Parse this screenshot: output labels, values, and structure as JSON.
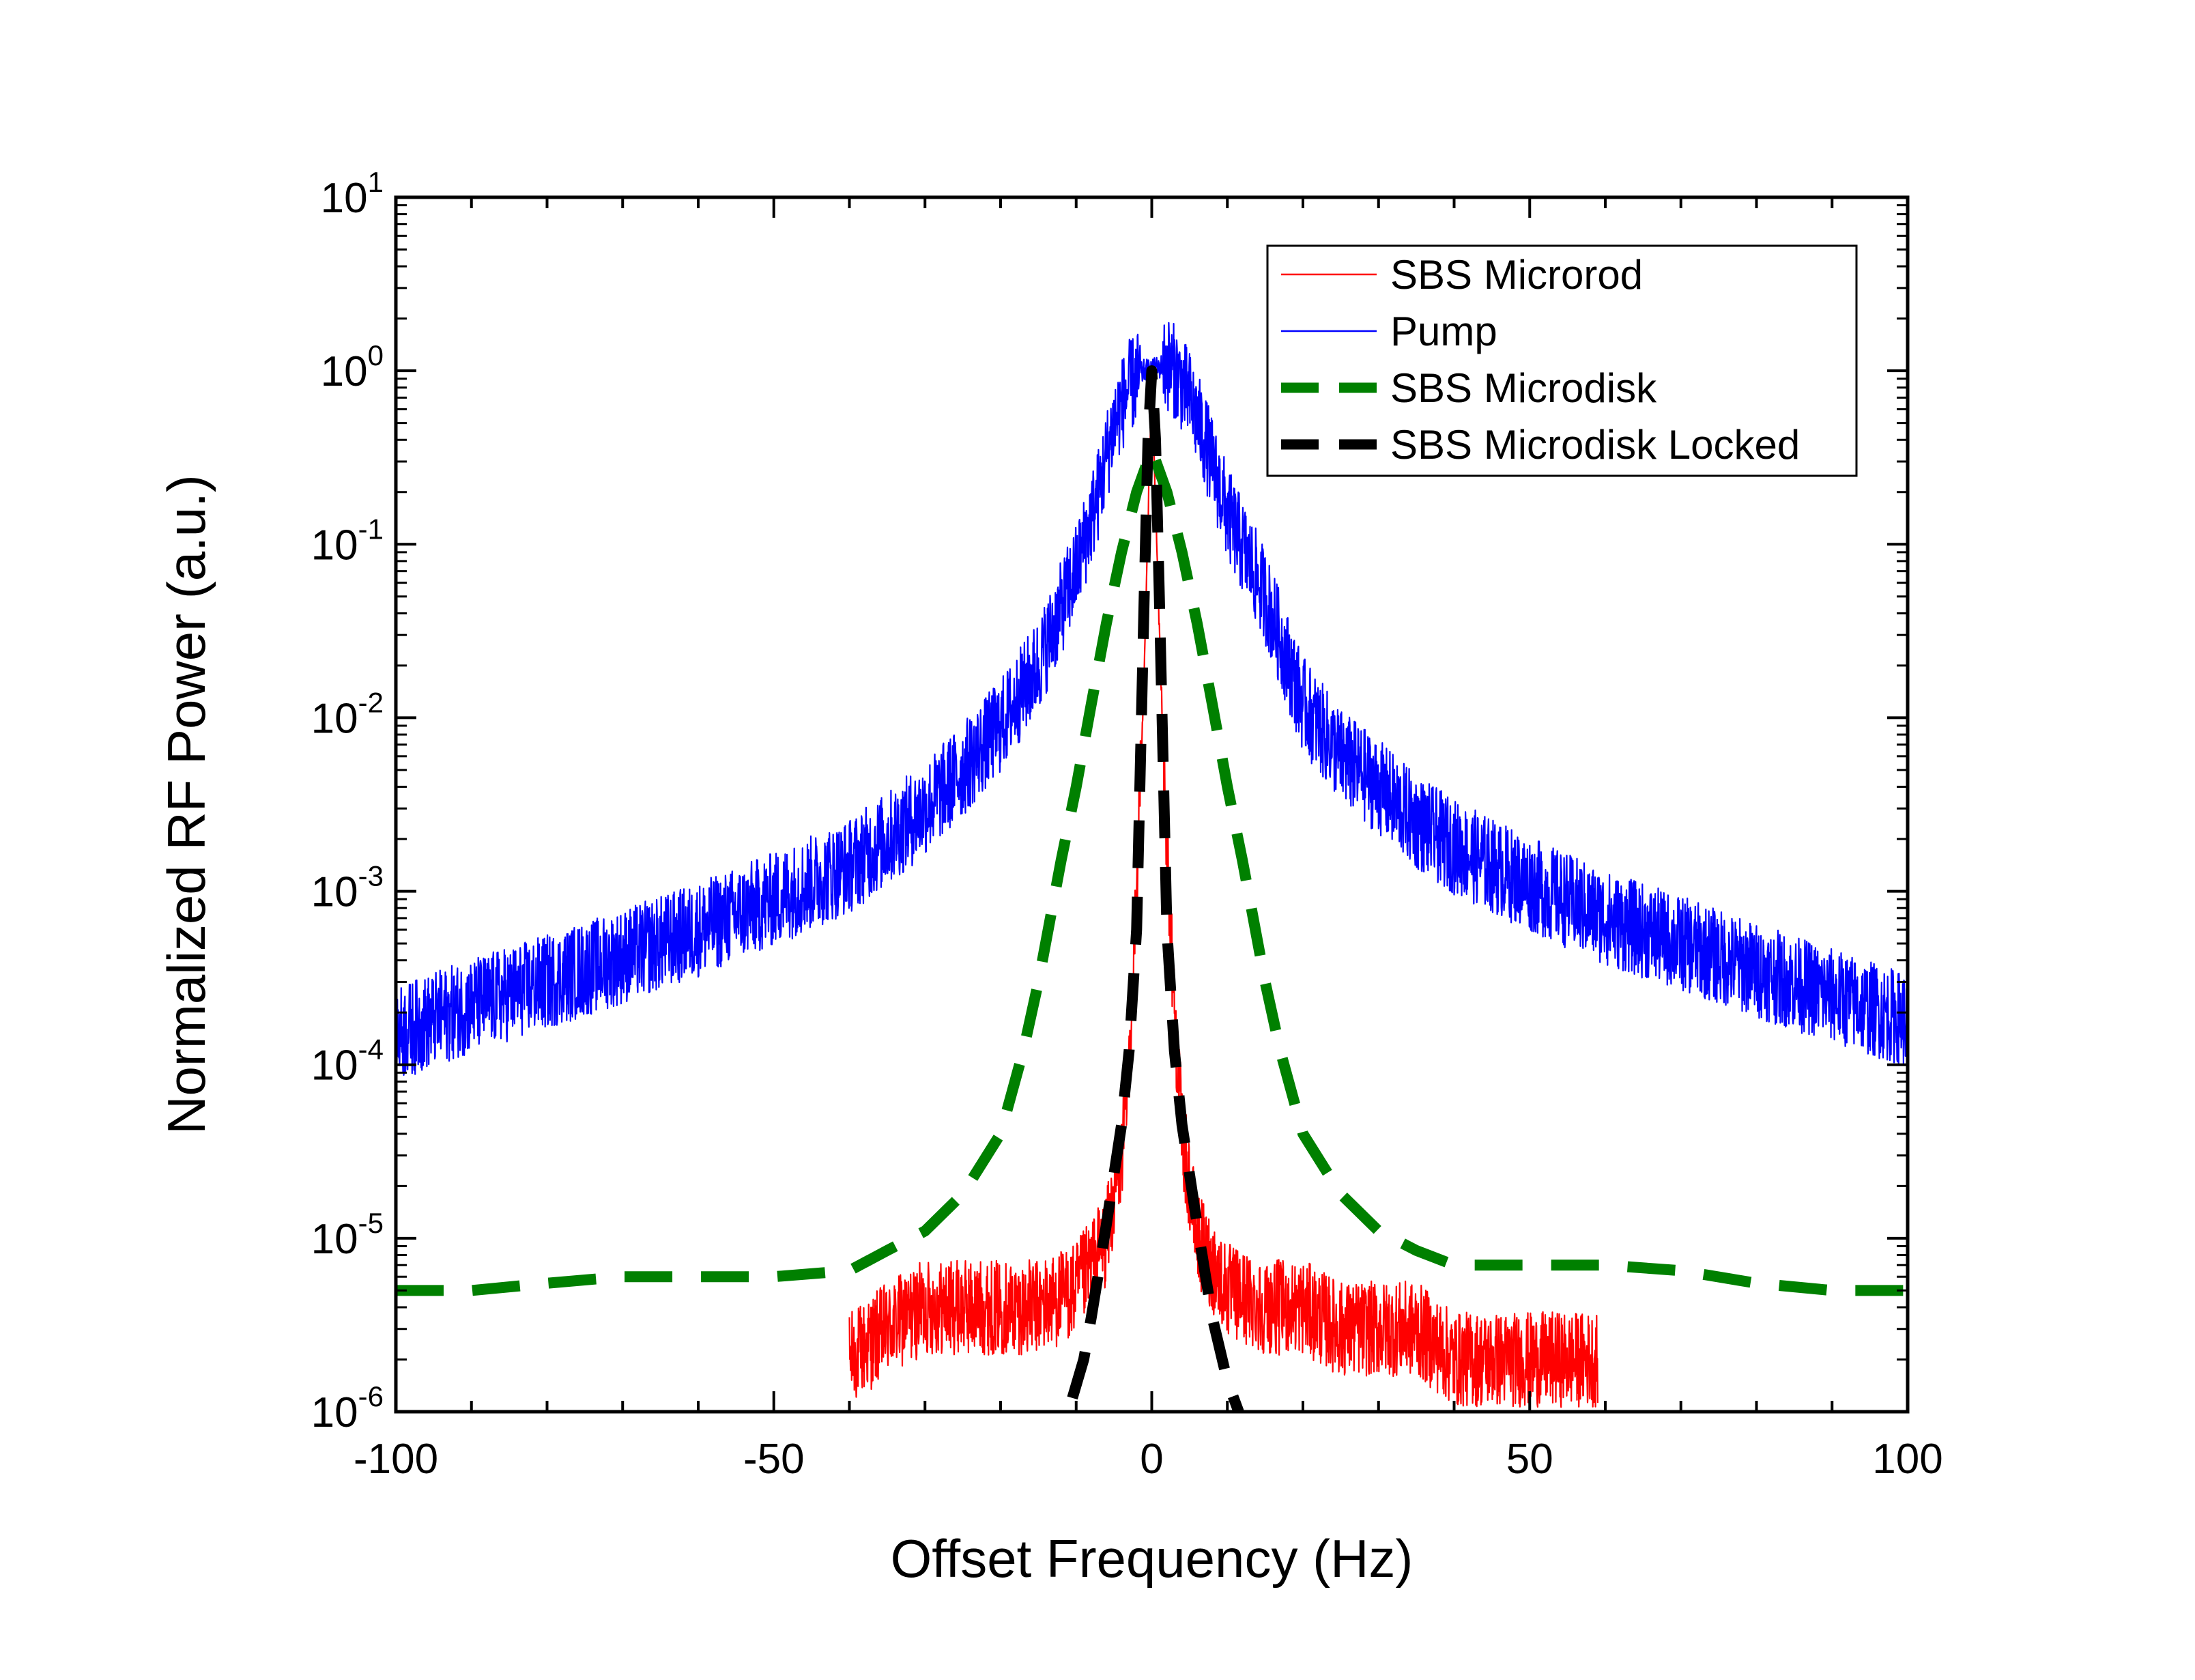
{
  "chart_data": {
    "type": "line",
    "title": "",
    "xlabel": "Offset Frequency (Hz)",
    "ylabel": "Normalized RF Power (a.u.)",
    "xlim": [
      -100,
      100
    ],
    "ylim": [
      1e-06,
      10
    ],
    "yscale": "log",
    "legend_position": "top-right",
    "x_ticks": [
      {
        "value": -100,
        "label": "-100"
      },
      {
        "value": -50,
        "label": "-50"
      },
      {
        "value": 0,
        "label": "0"
      },
      {
        "value": 50,
        "label": "50"
      },
      {
        "value": 100,
        "label": "100"
      }
    ],
    "y_ticks": [
      {
        "value": 1e-06,
        "base": "10",
        "exp": "-6"
      },
      {
        "value": 1e-05,
        "base": "10",
        "exp": "-5"
      },
      {
        "value": 0.0001,
        "base": "10",
        "exp": "-4"
      },
      {
        "value": 0.001,
        "base": "10",
        "exp": "-3"
      },
      {
        "value": 0.01,
        "base": "10",
        "exp": "-2"
      },
      {
        "value": 0.1,
        "base": "10",
        "exp": "-1"
      },
      {
        "value": 1,
        "base": "10",
        "exp": "0"
      },
      {
        "value": 10,
        "base": "10",
        "exp": "1"
      }
    ],
    "series": [
      {
        "name": "SBS Microrod",
        "color": "#ff0000",
        "style": "solid-noisy",
        "x": [
          -40,
          -35,
          -30,
          -25,
          -20,
          -15,
          -10,
          -8,
          -6,
          -4,
          -3,
          -2,
          -1,
          0,
          1,
          2,
          3,
          4,
          6,
          8,
          10,
          15,
          20,
          25,
          30,
          35,
          40,
          45,
          50,
          55,
          59
        ],
        "y": [
          2e-06,
          3e-06,
          4e-06,
          4e-06,
          4e-06,
          4e-06,
          5e-06,
          7e-06,
          1e-05,
          3e-05,
          0.0001,
          0.001,
          0.02,
          0.9,
          0.03,
          0.002,
          0.0002,
          4e-05,
          1e-05,
          7e-06,
          5e-06,
          4e-06,
          4e-06,
          3e-06,
          3e-06,
          3e-06,
          2e-06,
          2e-06,
          2e-06,
          2e-06,
          2e-06
        ]
      },
      {
        "name": "Pump",
        "color": "#0000ff",
        "style": "solid-noisy",
        "x": [
          -100,
          -90,
          -80,
          -70,
          -60,
          -50,
          -40,
          -35,
          -30,
          -25,
          -20,
          -15,
          -10,
          -7,
          -5,
          -3,
          -1,
          0,
          1,
          2,
          3,
          5,
          7,
          10,
          15,
          20,
          25,
          30,
          35,
          40,
          50,
          60,
          70,
          80,
          90,
          100
        ],
        "y": [
          0.00015,
          0.00022,
          0.0003,
          0.00042,
          0.0006,
          0.0009,
          0.0014,
          0.002,
          0.003,
          0.005,
          0.009,
          0.02,
          0.07,
          0.2,
          0.5,
          0.8,
          1.0,
          1.0,
          1.05,
          1.1,
          1.0,
          0.7,
          0.4,
          0.15,
          0.05,
          0.012,
          0.006,
          0.004,
          0.0025,
          0.0018,
          0.0011,
          0.0007,
          0.0005,
          0.00035,
          0.00025,
          0.00018
        ]
      },
      {
        "name": "SBS Microdisk",
        "color": "#008000",
        "style": "dashed-thick",
        "x": [
          -100,
          -90,
          -80,
          -70,
          -60,
          -50,
          -40,
          -35,
          -30,
          -25,
          -20,
          -17,
          -15,
          -12,
          -10,
          -8,
          -6,
          -4,
          -2,
          0,
          2,
          4,
          6,
          8,
          10,
          12,
          15,
          17,
          20,
          25,
          30,
          35,
          40,
          50,
          60,
          70,
          80,
          90,
          100
        ],
        "y": [
          5e-06,
          5e-06,
          5.5e-06,
          6e-06,
          6e-06,
          6e-06,
          6.5e-06,
          8.5e-06,
          1.1e-05,
          1.8e-05,
          4e-05,
          0.00012,
          0.0003,
          0.0015,
          0.004,
          0.012,
          0.035,
          0.09,
          0.2,
          0.35,
          0.2,
          0.09,
          0.035,
          0.012,
          0.004,
          0.0015,
          0.0003,
          0.00012,
          4e-05,
          1.8e-05,
          1.1e-05,
          8.5e-06,
          7e-06,
          7e-06,
          7e-06,
          6.5e-06,
          5.5e-06,
          5e-06,
          5e-06
        ]
      },
      {
        "name": "SBS Microdisk Locked",
        "color": "#000000",
        "style": "dashed-thick",
        "x": [
          -10.5,
          -9,
          -8,
          -6,
          -4,
          -3,
          -2,
          -1,
          -0.5,
          0,
          0.5,
          1,
          2,
          3,
          4,
          6,
          8,
          10,
          11.5
        ],
        "y": [
          1.2e-06,
          2e-06,
          3.5e-06,
          1.2e-05,
          4.5e-05,
          0.00012,
          0.0006,
          0.05,
          0.4,
          1.0,
          0.4,
          0.05,
          0.0006,
          0.00012,
          4.5e-05,
          1.2e-05,
          3.5e-06,
          1.5e-06,
          1e-06
        ]
      }
    ]
  }
}
